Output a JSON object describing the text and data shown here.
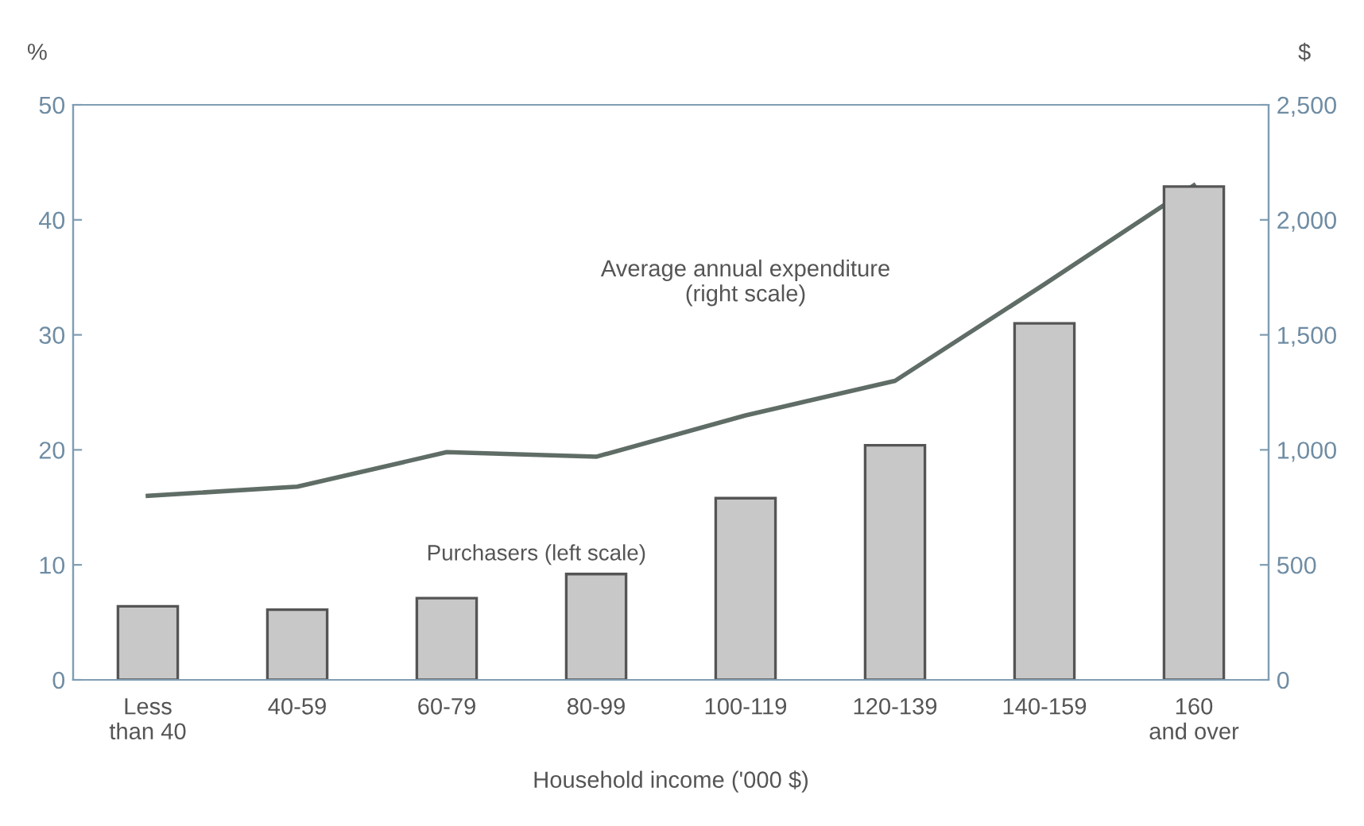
{
  "chart_data": {
    "type": "bar",
    "xlabel": "Household income ('000 $)",
    "ylabel": "%",
    "y2label": "$",
    "categories": [
      "Less\nthan 40",
      "40-59",
      "60-79",
      "80-99",
      "100-119",
      "120-139",
      "140-159",
      "160\nand over"
    ],
    "series": [
      {
        "name": "Purchasers (left scale)",
        "color": "#c8c8c8",
        "values": [
          6.4,
          6.1,
          7.1,
          9.2,
          15.8,
          20.4,
          31.0,
          42.9
        ]
      },
      {
        "name": "Average annual expenditure\n(right scale)",
        "type": "line",
        "axis": "y2",
        "color": "#5f6d66",
        "values": [
          800,
          840,
          990,
          970,
          1150,
          1300,
          1720,
          2150
        ]
      }
    ],
    "ylim": [
      0,
      50
    ],
    "yticks": [
      0,
      10,
      20,
      30,
      40,
      50
    ],
    "y2lim": [
      0,
      2500
    ],
    "y2ticks": [
      {
        "value": 0,
        "label": "0"
      },
      {
        "value": 500,
        "label": "500"
      },
      {
        "value": 1000,
        "label": "1,000"
      },
      {
        "value": 1500,
        "label": "1,500"
      },
      {
        "value": 2000,
        "label": "2,000"
      },
      {
        "value": 2500,
        "label": "2,500"
      }
    ],
    "grid": false,
    "legend": false
  }
}
